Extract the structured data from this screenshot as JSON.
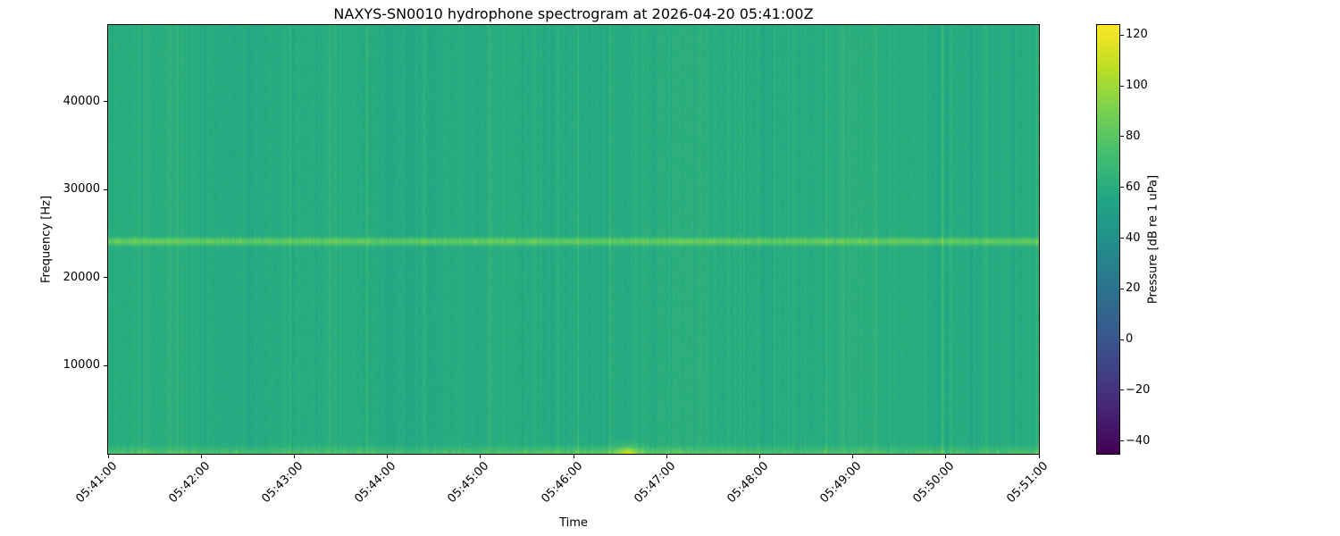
{
  "chart_data": {
    "type": "heatmap",
    "title": "NAXYS-SN0010 hydrophone spectrogram at 2026-04-20 05:41:00Z",
    "xlabel": "Time",
    "ylabel": "Frequency [Hz]",
    "x_ticks": [
      "05:41:00",
      "05:42:00",
      "05:43:00",
      "05:44:00",
      "05:45:00",
      "05:46:00",
      "05:47:00",
      "05:48:00",
      "05:49:00",
      "05:50:00",
      "05:51:00"
    ],
    "y_ticks": [
      10000,
      20000,
      30000,
      40000
    ],
    "ylim": [
      0,
      48700
    ],
    "grid": false,
    "colorbar": {
      "label": "Pressure [dB re 1 uPa]",
      "ticks": [
        -40,
        -20,
        0,
        20,
        40,
        60,
        80,
        100,
        120
      ],
      "vmin": -45,
      "vmax": 124,
      "colormap": "viridis",
      "position": "right"
    },
    "colormap_stops": [
      [
        0.0,
        [
          68,
          1,
          84
        ]
      ],
      [
        0.1,
        [
          72,
          36,
          117
        ]
      ],
      [
        0.2,
        [
          65,
          68,
          135
        ]
      ],
      [
        0.3,
        [
          53,
          95,
          141
        ]
      ],
      [
        0.4,
        [
          42,
          120,
          142
        ]
      ],
      [
        0.5,
        [
          33,
          145,
          140
        ]
      ],
      [
        0.6,
        [
          34,
          168,
          132
        ]
      ],
      [
        0.7,
        [
          68,
          191,
          112
        ]
      ],
      [
        0.8,
        [
          122,
          209,
          81
        ]
      ],
      [
        0.9,
        [
          189,
          223,
          38
        ]
      ],
      [
        1.0,
        [
          253,
          231,
          37
        ]
      ]
    ],
    "features": {
      "background_level_db": 59,
      "tonal_band": {
        "frequency_hz": 24100,
        "peak_above_background_db": 24.5,
        "width_hz": 420
      },
      "low_frequency_band": {
        "below_hz": 1500,
        "peak_above_background_db": 15
      },
      "transient_hotspot": {
        "time": "05:46:40",
        "x_fraction": 0.557,
        "peak_above_background_db": 30
      },
      "vertical_striping_db": 3
    }
  }
}
